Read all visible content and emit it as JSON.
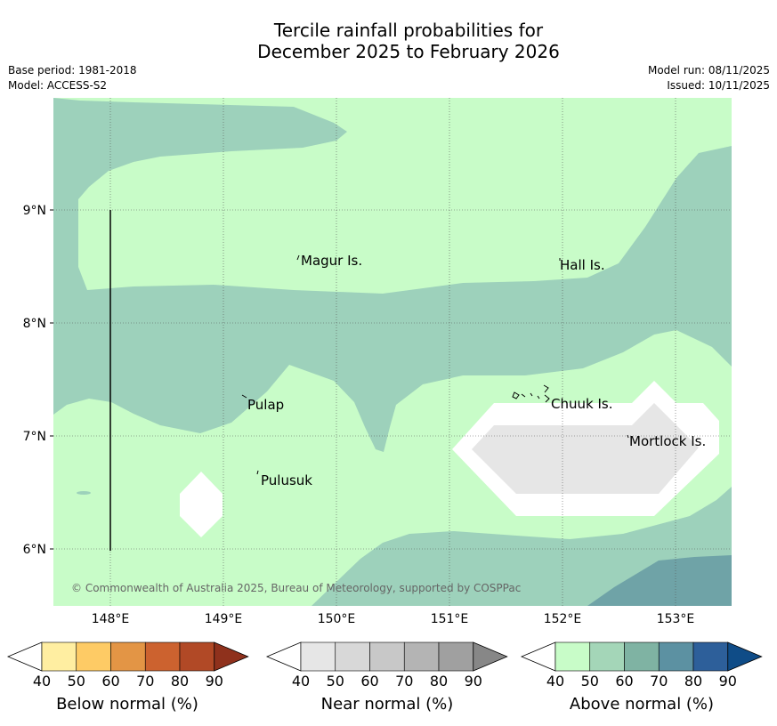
{
  "title_line1": "Tercile rainfall probabilities for",
  "title_line2": "December 2025 to February 2026",
  "base_period": "Base period: 1981-2018",
  "model": "Model: ACCESS-S2",
  "model_run": "Model run: 08/11/2025",
  "issued": "Issued: 10/11/2025",
  "copyright": "© Commonwealth of Australia 2025, Bureau of Meteorology, supported by COSPPac",
  "lat_ticks": [
    "9°N",
    "8°N",
    "7°N",
    "6°N"
  ],
  "lon_ticks": [
    "148°E",
    "149°E",
    "150°E",
    "151°E",
    "152°E",
    "153°E"
  ],
  "places": {
    "magur": "Magur Is.",
    "hall": "Hall Is.",
    "pulap": "Pulap",
    "chuuk": "Chuuk Is.",
    "mortlock": "Mortlock Is.",
    "pulusuk": "Pulusuk"
  },
  "colorbars": [
    {
      "label": "Below normal (%)",
      "ticks": [
        "40",
        "50",
        "60",
        "70",
        "80",
        "90"
      ],
      "colors": [
        "#ffeea1",
        "#fecb65",
        "#e39545",
        "#cc622f",
        "#b14926",
        "#8f311c"
      ]
    },
    {
      "label": "Near normal (%)",
      "ticks": [
        "40",
        "50",
        "60",
        "70",
        "80",
        "90"
      ],
      "colors": [
        "#e6e6e6",
        "#d8d8d8",
        "#c8c8c8",
        "#b4b4b4",
        "#a0a0a0",
        "#878787"
      ]
    },
    {
      "label": "Above normal (%)",
      "ticks": [
        "40",
        "50",
        "60",
        "70",
        "80",
        "90"
      ],
      "colors": [
        "#c8fcc8",
        "#a4d6b8",
        "#7fb3a3",
        "#5c91a2",
        "#2d5f9a",
        "#0f4c87"
      ]
    }
  ],
  "colors": {
    "above_40": "#c8fcc8",
    "above_50": "#9dd1bb",
    "above_60": "#6fa3a7",
    "near_40": "#e6e6e6",
    "white": "#ffffff"
  }
}
